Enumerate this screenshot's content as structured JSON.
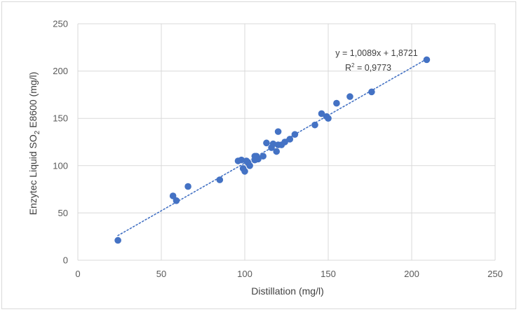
{
  "chart_data": {
    "type": "scatter",
    "title": "",
    "xlabel": "Distillation (mg/l)",
    "ylabel_main": "Enzytec Liquid SO",
    "ylabel_sub": "2",
    "ylabel_rest": " E8600 (mg/l)",
    "xlim": [
      0,
      250
    ],
    "ylim": [
      0,
      250
    ],
    "xticks": [
      "0",
      "50",
      "100",
      "150",
      "200",
      "250"
    ],
    "yticks": [
      "0",
      "50",
      "100",
      "150",
      "200",
      "250"
    ],
    "grid": true,
    "legend": "none",
    "marker_color": "#4472c4",
    "trendline": {
      "slope": 1.0089,
      "intercept": 1.8721,
      "x_range": [
        24,
        210
      ],
      "style": "dotted",
      "equation_label": "y = 1,0089x + 1,8721",
      "r2_label_prefix": "R",
      "r2_label_sup": "2",
      "r2_label_rest": " = 0,9773"
    },
    "series": [
      {
        "x": [
          24,
          57,
          59,
          66,
          85,
          96,
          98,
          99,
          100,
          101,
          102,
          103,
          106,
          106,
          107,
          108,
          111,
          113,
          116,
          117,
          119,
          120,
          120,
          122,
          124,
          127,
          130,
          142,
          146,
          149,
          150,
          155,
          163,
          176,
          209
        ],
        "y": [
          21,
          68,
          63,
          78,
          85,
          105,
          106,
          97,
          94,
          105,
          103,
          100,
          110,
          106,
          110,
          107,
          110,
          124,
          119,
          123,
          115,
          136,
          122,
          122,
          125,
          128,
          133,
          143,
          155,
          152,
          150,
          166,
          173,
          178,
          212
        ]
      }
    ]
  }
}
